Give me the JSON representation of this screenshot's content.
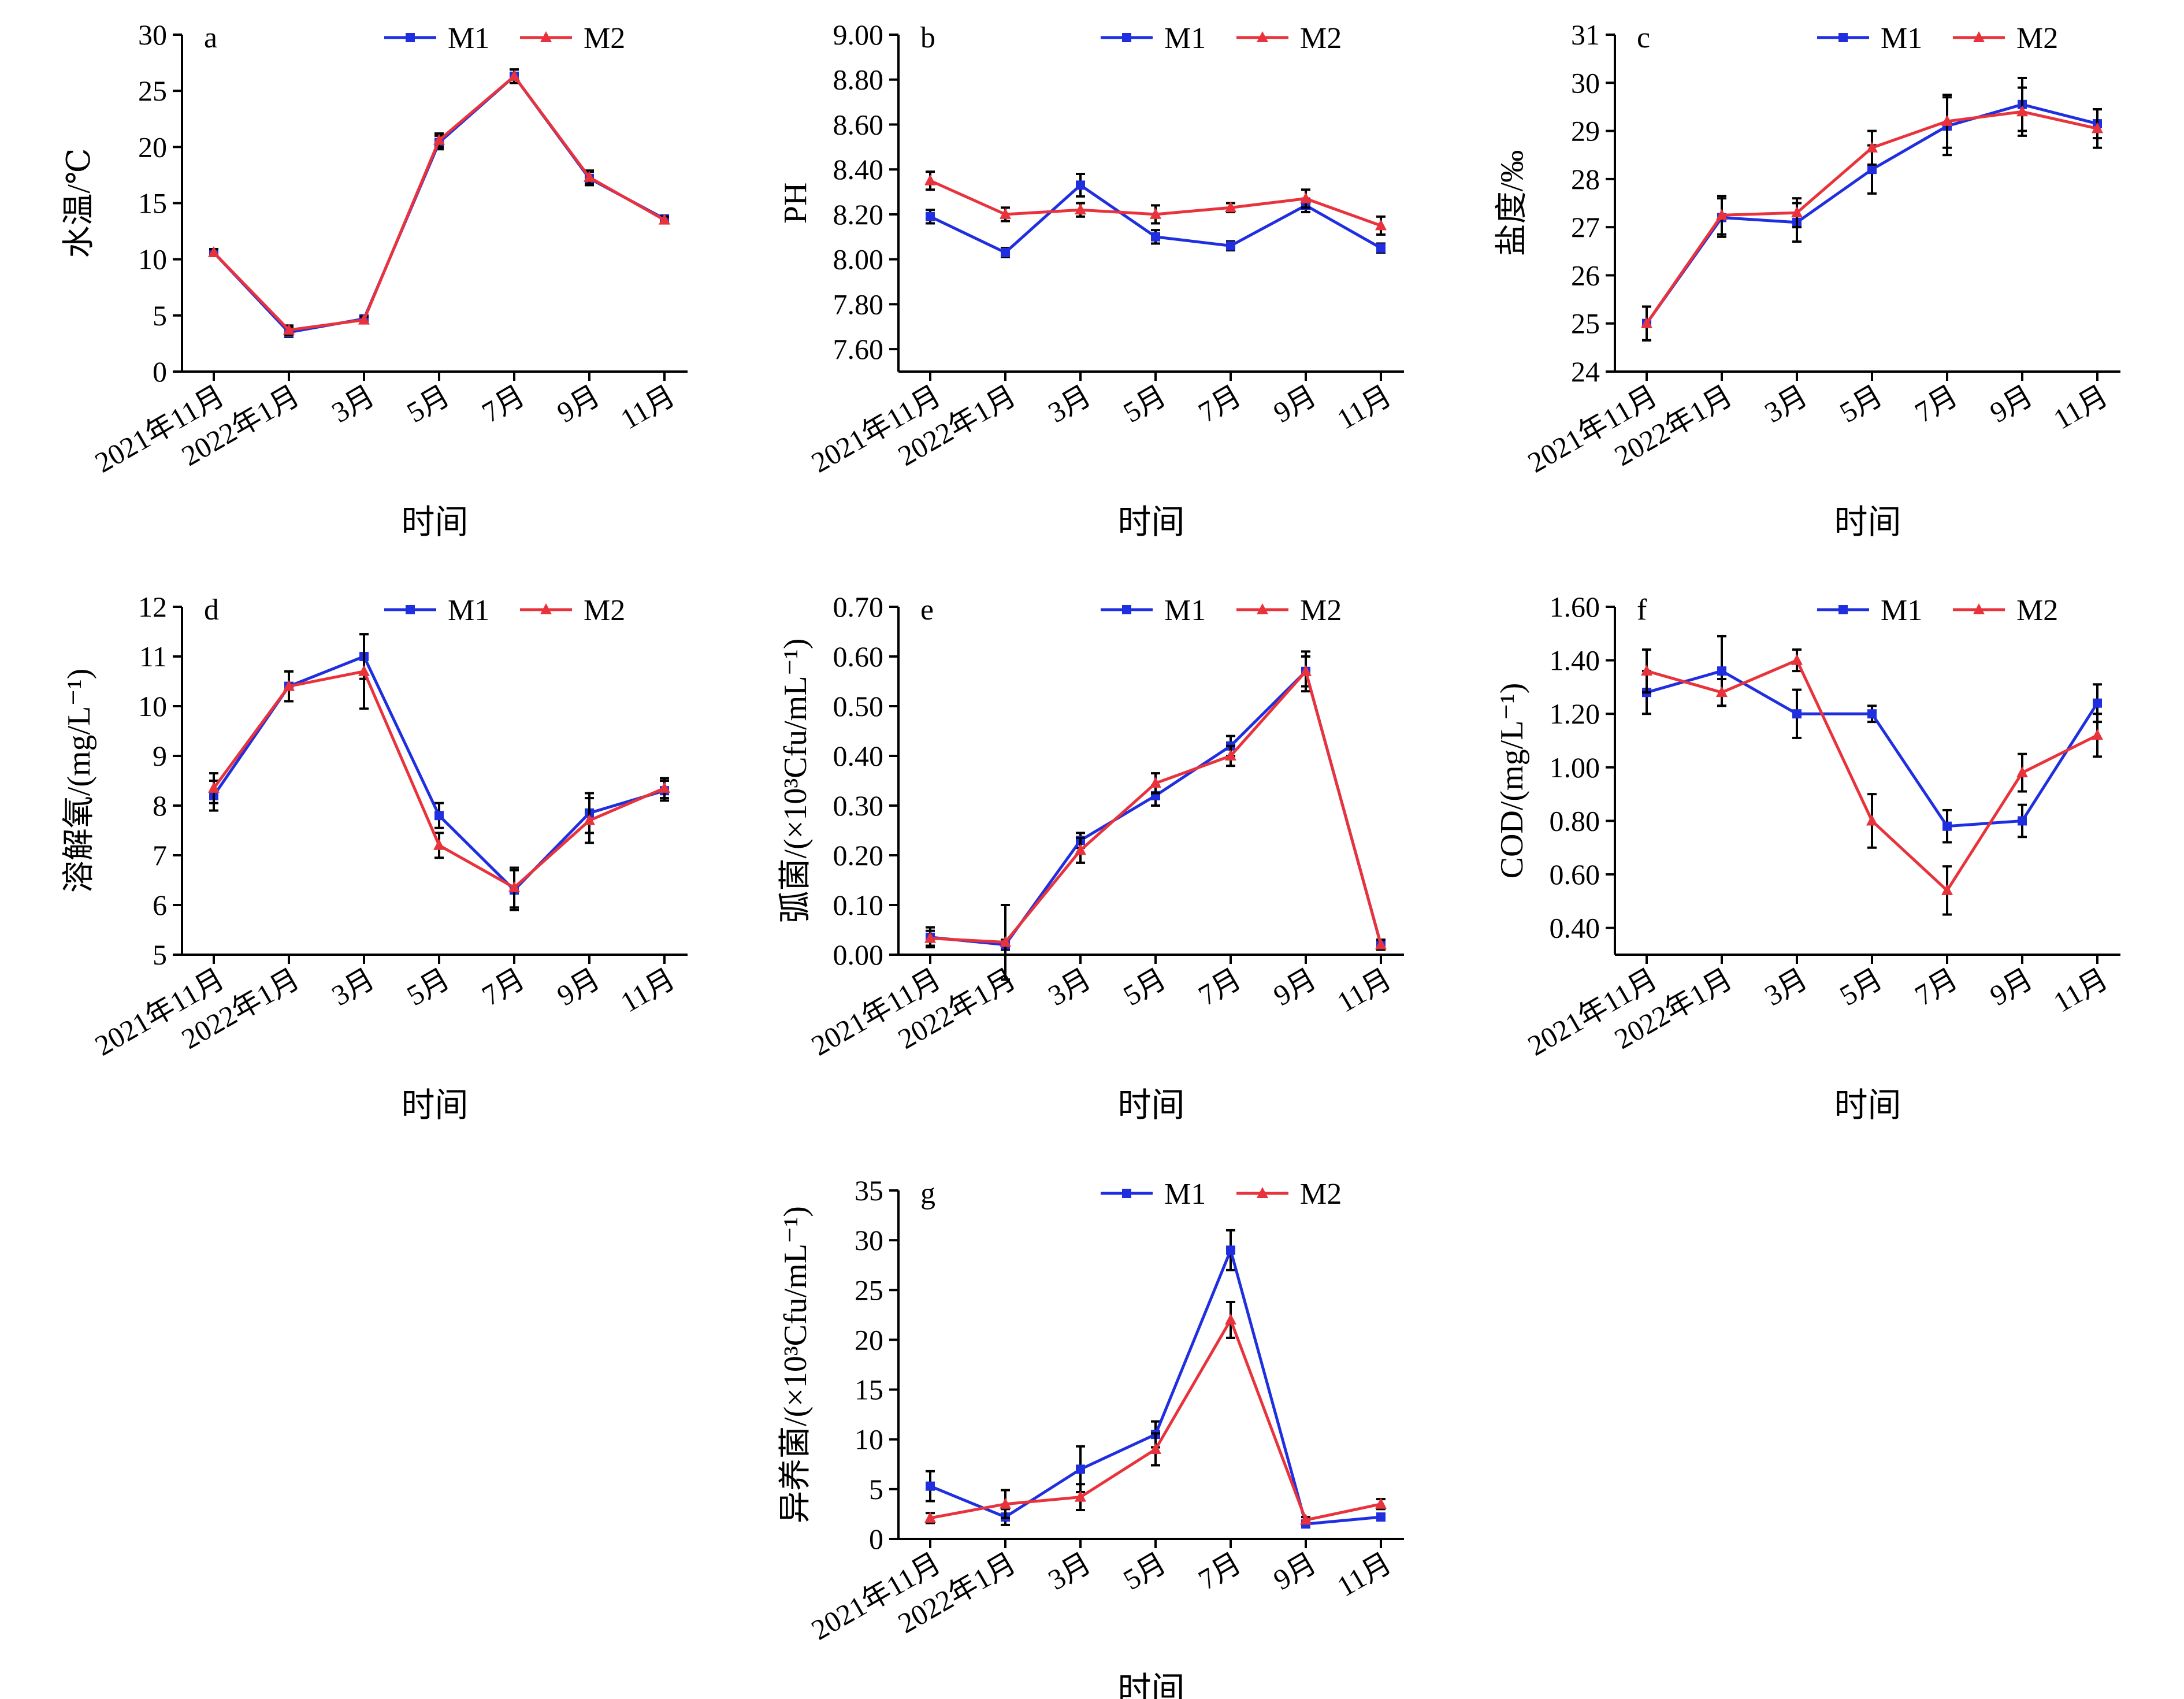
{
  "legend_labels": [
    "M1",
    "M2"
  ],
  "colors": {
    "M1": "#1f2fe0",
    "M2": "#e8333c",
    "axis": "#000000",
    "error": "#000000"
  },
  "chart_data": [
    {
      "panel": "a",
      "type": "line",
      "categories": [
        "2021年11月",
        "2022年1月",
        "3月",
        "5月",
        "7月",
        "9月",
        "11月"
      ],
      "xlabel": "时间",
      "ylabel": "水温/℃",
      "ylim": [
        0,
        30
      ],
      "yticks": [
        "0",
        "5",
        "10",
        "15",
        "20",
        "25",
        "30"
      ],
      "grid": false,
      "legend": "top-right",
      "series": [
        {
          "name": "M1",
          "values": [
            10.6,
            3.5,
            4.7,
            20.4,
            26.3,
            17.2,
            13.6
          ],
          "errors": [
            0.3,
            0.4,
            0.3,
            0.6,
            0.6,
            0.6,
            0.3
          ]
        },
        {
          "name": "M2",
          "values": [
            10.6,
            3.7,
            4.6,
            20.6,
            26.3,
            17.3,
            13.5
          ],
          "errors": [
            0.3,
            0.4,
            0.3,
            0.6,
            0.6,
            0.6,
            0.3
          ]
        }
      ]
    },
    {
      "panel": "b",
      "type": "line",
      "categories": [
        "2021年11月",
        "2022年1月",
        "3月",
        "5月",
        "7月",
        "9月",
        "11月"
      ],
      "xlabel": "时间",
      "ylabel": "PH",
      "ylim": [
        7.5,
        9.0
      ],
      "yticks": [
        "7.60",
        "7.80",
        "8.00",
        "8.20",
        "8.40",
        "8.60",
        "8.80",
        "9.00"
      ],
      "grid": false,
      "legend": "top-right",
      "series": [
        {
          "name": "M1",
          "values": [
            8.19,
            8.03,
            8.33,
            8.1,
            8.06,
            8.24,
            8.05
          ],
          "errors": [
            0.03,
            0.02,
            0.05,
            0.03,
            0.02,
            0.03,
            0.02
          ]
        },
        {
          "name": "M2",
          "values": [
            8.35,
            8.2,
            8.22,
            8.2,
            8.23,
            8.27,
            8.15
          ],
          "errors": [
            0.04,
            0.03,
            0.03,
            0.04,
            0.02,
            0.04,
            0.04
          ]
        }
      ]
    },
    {
      "panel": "c",
      "type": "line",
      "categories": [
        "2021年11月",
        "2022年1月",
        "3月",
        "5月",
        "7月",
        "9月",
        "11月"
      ],
      "xlabel": "时间",
      "ylabel": "盐度/‰",
      "ylim": [
        24,
        31
      ],
      "yticks": [
        "24",
        "25",
        "26",
        "27",
        "28",
        "29",
        "30",
        "31"
      ],
      "grid": false,
      "legend": "top-right",
      "series": [
        {
          "name": "M1",
          "values": [
            25.0,
            27.2,
            27.1,
            28.2,
            29.1,
            29.55,
            29.15
          ],
          "errors": [
            0.35,
            0.4,
            0.4,
            0.5,
            0.6,
            0.55,
            0.3
          ]
        },
        {
          "name": "M2",
          "values": [
            25.0,
            27.25,
            27.3,
            28.65,
            29.2,
            29.4,
            29.05
          ],
          "errors": [
            0.35,
            0.4,
            0.3,
            0.35,
            0.55,
            0.5,
            0.4
          ]
        }
      ]
    },
    {
      "panel": "d",
      "type": "line",
      "categories": [
        "2021年11月",
        "2022年1月",
        "3月",
        "5月",
        "7月",
        "9月",
        "11月"
      ],
      "xlabel": "时间",
      "ylabel": "溶解氧/(mg/L⁻¹)",
      "ylim": [
        5,
        12
      ],
      "yticks": [
        "5",
        "6",
        "7",
        "8",
        "9",
        "10",
        "11",
        "12"
      ],
      "grid": false,
      "legend": "top-right",
      "series": [
        {
          "name": "M1",
          "values": [
            8.2,
            10.4,
            11.0,
            7.8,
            6.3,
            7.85,
            8.3
          ],
          "errors": [
            0.3,
            0.3,
            0.45,
            0.25,
            0.4,
            0.4,
            0.2
          ]
        },
        {
          "name": "M2",
          "values": [
            8.35,
            10.4,
            10.7,
            7.2,
            6.35,
            7.7,
            8.35
          ],
          "errors": [
            0.3,
            0.3,
            0.75,
            0.25,
            0.4,
            0.45,
            0.2
          ]
        }
      ]
    },
    {
      "panel": "e",
      "type": "line",
      "categories": [
        "2021年11月",
        "2022年1月",
        "3月",
        "5月",
        "7月",
        "9月",
        "11月"
      ],
      "xlabel": "时间",
      "ylabel": "弧菌/(×10³Cfu/mL⁻¹)",
      "ylim": [
        0,
        0.7
      ],
      "yticks": [
        "0.00",
        "0.10",
        "0.20",
        "0.30",
        "0.40",
        "0.50",
        "0.60",
        "0.70"
      ],
      "grid": false,
      "legend": "top-right",
      "series": [
        {
          "name": "M1",
          "values": [
            0.035,
            0.02,
            0.23,
            0.32,
            0.42,
            0.57,
            0.02
          ],
          "errors": [
            0.02,
            0.01,
            0.015,
            0.02,
            0.02,
            0.04,
            0.01
          ]
        },
        {
          "name": "M2",
          "values": [
            0.033,
            0.025,
            0.21,
            0.345,
            0.4,
            0.57,
            0.02
          ],
          "errors": [
            0.015,
            0.075,
            0.025,
            0.02,
            0.02,
            0.03,
            0.01
          ]
        }
      ]
    },
    {
      "panel": "f",
      "type": "line",
      "categories": [
        "2021年11月",
        "2022年1月",
        "3月",
        "5月",
        "7月",
        "9月",
        "11月"
      ],
      "xlabel": "时间",
      "ylabel": "COD/(mg/L⁻¹)",
      "ylim": [
        0.3,
        1.6
      ],
      "yticks": [
        "0.40",
        "0.60",
        "0.80",
        "1.00",
        "1.20",
        "1.40",
        "1.60"
      ],
      "grid": false,
      "legend": "top-right",
      "series": [
        {
          "name": "M1",
          "values": [
            1.28,
            1.36,
            1.2,
            1.2,
            0.78,
            0.8,
            1.24
          ],
          "errors": [
            0.08,
            0.13,
            0.09,
            0.03,
            0.06,
            0.06,
            0.07
          ]
        },
        {
          "name": "M2",
          "values": [
            1.36,
            1.28,
            1.4,
            0.8,
            0.54,
            0.98,
            1.12
          ],
          "errors": [
            0.08,
            0.05,
            0.04,
            0.1,
            0.09,
            0.07,
            0.08
          ]
        }
      ]
    },
    {
      "panel": "g",
      "type": "line",
      "categories": [
        "2021年11月",
        "2022年1月",
        "3月",
        "5月",
        "7月",
        "9月",
        "11月"
      ],
      "xlabel": "时间",
      "ylabel": "异养菌/(×10³Cfu/mL⁻¹)",
      "ylim": [
        0,
        35
      ],
      "yticks": [
        "0",
        "5",
        "10",
        "15",
        "20",
        "25",
        "30",
        "35"
      ],
      "grid": false,
      "legend": "top-right",
      "series": [
        {
          "name": "M1",
          "values": [
            5.3,
            2.2,
            7.0,
            10.5,
            29.0,
            1.5,
            2.2
          ],
          "errors": [
            1.5,
            0.8,
            2.3,
            1.3,
            2.0,
            0.3,
            0.3
          ]
        },
        {
          "name": "M2",
          "values": [
            2.1,
            3.5,
            4.2,
            9.0,
            22.0,
            1.9,
            3.5
          ],
          "errors": [
            0.5,
            1.4,
            1.3,
            1.6,
            1.8,
            0.3,
            0.5
          ]
        }
      ]
    }
  ]
}
